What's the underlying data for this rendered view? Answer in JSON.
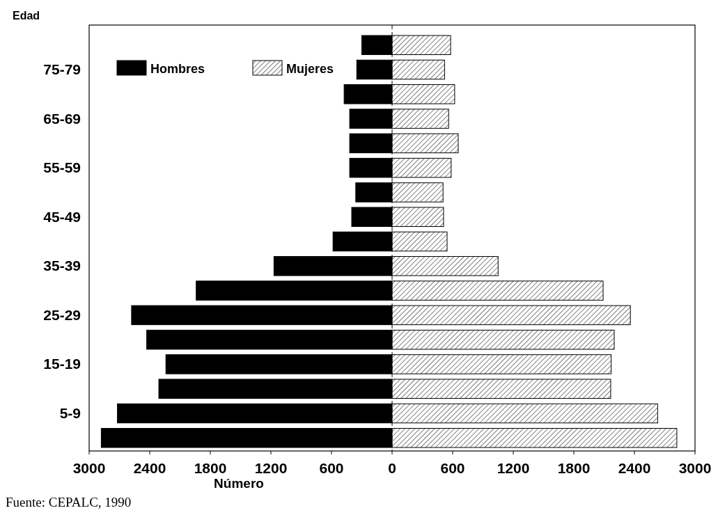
{
  "chart_data": {
    "type": "bar",
    "orientation": "horizontal",
    "stacked": true,
    "ylabel": "Edad",
    "xlabel": "Número",
    "categories": [
      null,
      "75-79",
      null,
      "65-69",
      null,
      "55-59",
      null,
      "45-49",
      null,
      "35-39",
      null,
      "25-29",
      null,
      "15-19",
      null,
      "5-9",
      null
    ],
    "series": [
      {
        "name": "Hombres",
        "color": "#000000",
        "values": [
          -300,
          -350,
          -475,
          -420,
          -420,
          -420,
          -360,
          -400,
          -585,
          -1170,
          -1940,
          -2580,
          -2430,
          -2240,
          -2310,
          -2720,
          -2880
        ]
      },
      {
        "name": "Mujeres",
        "color": "#000000",
        "values": [
          580,
          520,
          620,
          560,
          655,
          585,
          505,
          510,
          545,
          1050,
          2090,
          2360,
          2200,
          2170,
          2165,
          2630,
          2820
        ]
      }
    ],
    "xlim": [
      -3000,
      3000
    ],
    "xticks": [
      {
        "value": -3000,
        "label": "3000"
      },
      {
        "value": -2400,
        "label": "2400"
      },
      {
        "value": -1800,
        "label": "1800"
      },
      {
        "value": -1200,
        "label": "1200"
      },
      {
        "value": -600,
        "label": "600"
      },
      0,
      600,
      1200,
      1800,
      2400,
      3000
    ],
    "ref_lines": [
      {
        "axis": "x",
        "value": 0,
        "line_style": "dashed",
        "color": "#000000"
      }
    ],
    "legend": "top left",
    "grid": false,
    "annotations": [
      "Fuente: CEPALC, 1990"
    ]
  }
}
